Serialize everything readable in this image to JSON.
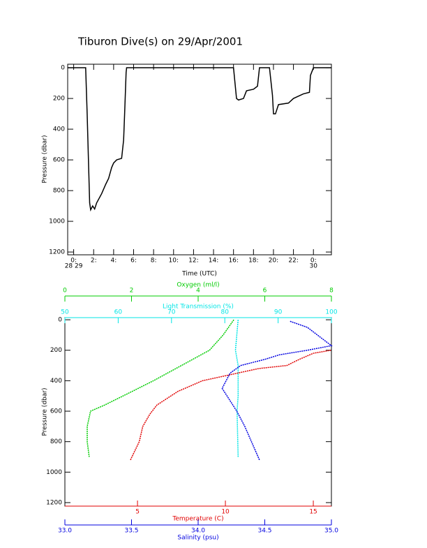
{
  "chart_data": [
    {
      "type": "line",
      "title": "Tiburon Dive(s) on 29/Apr/2001",
      "xlabel": "Time (UTC)",
      "ylabel": "Pressure (dbar)",
      "x": [
        -0.6,
        1.2,
        1.35,
        1.5,
        1.6,
        1.7,
        1.9,
        2.1,
        2.3,
        2.8,
        3.2,
        3.5,
        3.8,
        4.0,
        4.3,
        4.8,
        5.0,
        5.1,
        5.25,
        5.3,
        16.0,
        16.3,
        16.5,
        17.0,
        17.3,
        18.0,
        18.4,
        18.6,
        19.6,
        19.9,
        20.0,
        20.2,
        20.5,
        21.5,
        22.0,
        23.0,
        23.6,
        23.7,
        24.0,
        25.8
      ],
      "series": [
        {
          "color": "#000000",
          "values": [
            0,
            0,
            300,
            650,
            880,
            925,
            900,
            920,
            880,
            820,
            760,
            720,
            650,
            620,
            600,
            590,
            470,
            300,
            30,
            0,
            0,
            200,
            210,
            200,
            150,
            140,
            120,
            0,
            0,
            180,
            300,
            300,
            240,
            230,
            200,
            170,
            160,
            50,
            0,
            0
          ]
        }
      ],
      "xlim": [
        -0.6,
        25.8
      ],
      "xticks": [
        {
          "value": 0,
          "label": "0:"
        },
        {
          "value": 2,
          "label": "2:"
        },
        {
          "value": 4,
          "label": "4:"
        },
        {
          "value": 6,
          "label": "6:"
        },
        {
          "value": 8,
          "label": "8:"
        },
        {
          "value": 10,
          "label": "10:"
        },
        {
          "value": 12,
          "label": "12:"
        },
        {
          "value": 14,
          "label": "14:"
        },
        {
          "value": 16,
          "label": "16:"
        },
        {
          "value": 18,
          "label": "18:"
        },
        {
          "value": 20,
          "label": "20:"
        },
        {
          "value": 22,
          "label": "22:"
        },
        {
          "value": 24,
          "label": "0:"
        }
      ],
      "date_labels": [
        {
          "value": 0,
          "label": "28 29"
        },
        {
          "value": 24,
          "label": "30"
        }
      ],
      "ylim": [
        1218,
        -23
      ],
      "yticks": [
        0,
        200,
        400,
        600,
        800,
        1000,
        1200
      ]
    },
    {
      "type": "profile",
      "ylabel": "Pressure (dbar)",
      "ylim": [
        1223,
        -14
      ],
      "yticks": [
        0,
        200,
        400,
        600,
        800,
        1000,
        1200
      ],
      "axes": [
        {
          "side": "top",
          "label": "Oxygen (ml/l)",
          "color": "#00cc00",
          "xlim": [
            0,
            8
          ],
          "xticks": [
            0,
            2,
            4,
            6,
            8
          ],
          "pressure": [
            0,
            100,
            200,
            300,
            400,
            480,
            560,
            600,
            700,
            800,
            900
          ],
          "values": [
            5.07,
            4.75,
            4.34,
            3.5,
            2.66,
            1.93,
            1.19,
            0.77,
            0.67,
            0.67,
            0.73
          ]
        },
        {
          "side": "top",
          "label": "Light Transmission (%)",
          "color": "#00e5e5",
          "xlim": [
            50,
            100
          ],
          "xticks": [
            50,
            60,
            70,
            80,
            90,
            100
          ],
          "pressure": [
            0,
            200,
            300,
            500,
            600,
            900
          ],
          "values": [
            82.5,
            82,
            82.5,
            82.5,
            82.3,
            82.5
          ]
        },
        {
          "side": "bottom",
          "label": "Temperature (C)",
          "color": "#e00000",
          "xlim": [
            0.87,
            16.03
          ],
          "xticks": [
            5,
            10,
            15
          ],
          "pressure": [
            200,
            220,
            260,
            300,
            320,
            400,
            470,
            560,
            620,
            700,
            800,
            920
          ],
          "values": [
            16.0,
            15.0,
            14.2,
            13.5,
            11.9,
            8.7,
            7.3,
            6.1,
            5.7,
            5.3,
            5.1,
            4.6
          ]
        },
        {
          "side": "bottom",
          "label": "Salinity (psu)",
          "color": "#0000e0",
          "xlim": [
            33,
            35
          ],
          "xticks": [
            {
              "value": 33,
              "label": "33.0"
            },
            {
              "value": 33.5,
              "label": "33.5"
            },
            {
              "value": 34,
              "label": "34.0"
            },
            {
              "value": 34.5,
              "label": "34.5"
            },
            {
              "value": 35,
              "label": "35.0"
            }
          ],
          "pressure": [
            10,
            50,
            170,
            200,
            230,
            260,
            300,
            350,
            450,
            600,
            700,
            800,
            920
          ],
          "values": [
            34.69,
            34.82,
            35.0,
            34.82,
            34.61,
            34.5,
            34.32,
            34.24,
            34.18,
            34.29,
            34.35,
            34.4,
            34.46
          ]
        }
      ]
    }
  ]
}
